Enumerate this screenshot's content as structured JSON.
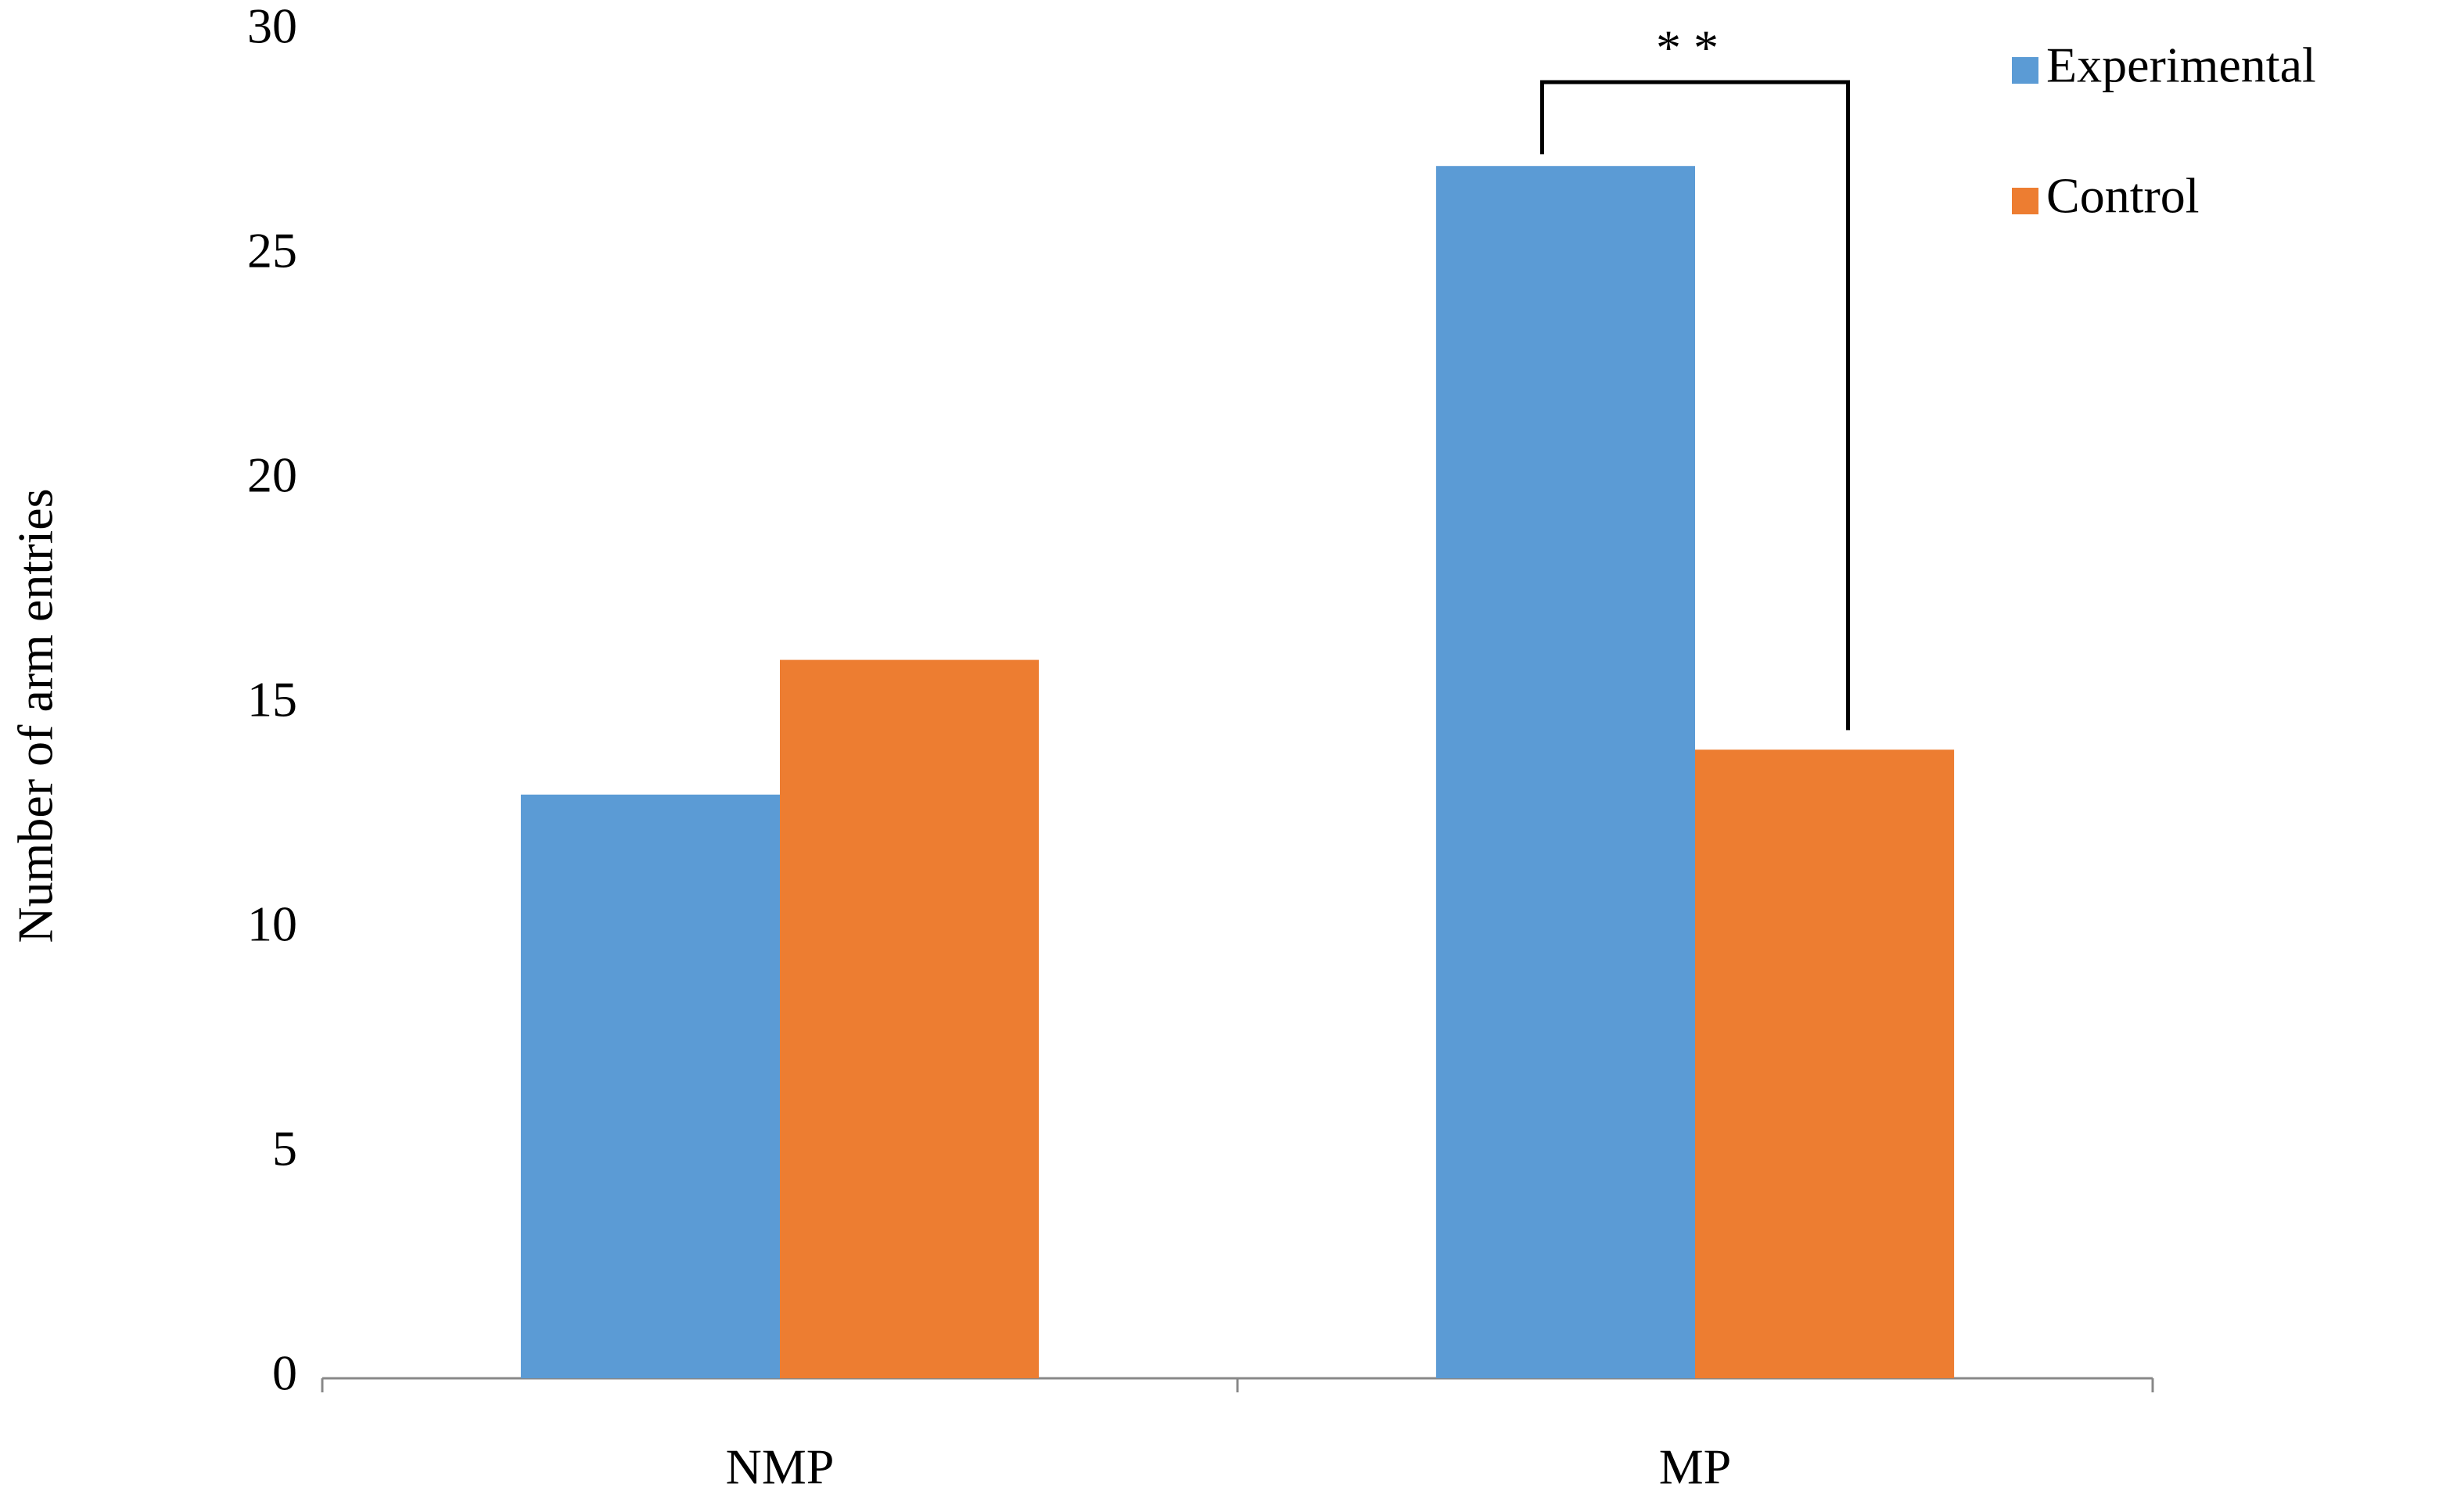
{
  "chart_data": {
    "type": "bar",
    "y_label": "Number of arm entries",
    "categories": [
      "NMP",
      "MP"
    ],
    "series": [
      {
        "name": "Experimental",
        "color": "#5b9bd5",
        "values": [
          13,
          27
        ]
      },
      {
        "name": "Control",
        "color": "#ed7d31",
        "values": [
          16,
          14
        ]
      }
    ],
    "ylim": [
      0,
      30
    ],
    "yticks": [
      0,
      5,
      10,
      15,
      20,
      25,
      30
    ],
    "grid": false,
    "legend": "top-right",
    "annotation": "* *"
  }
}
